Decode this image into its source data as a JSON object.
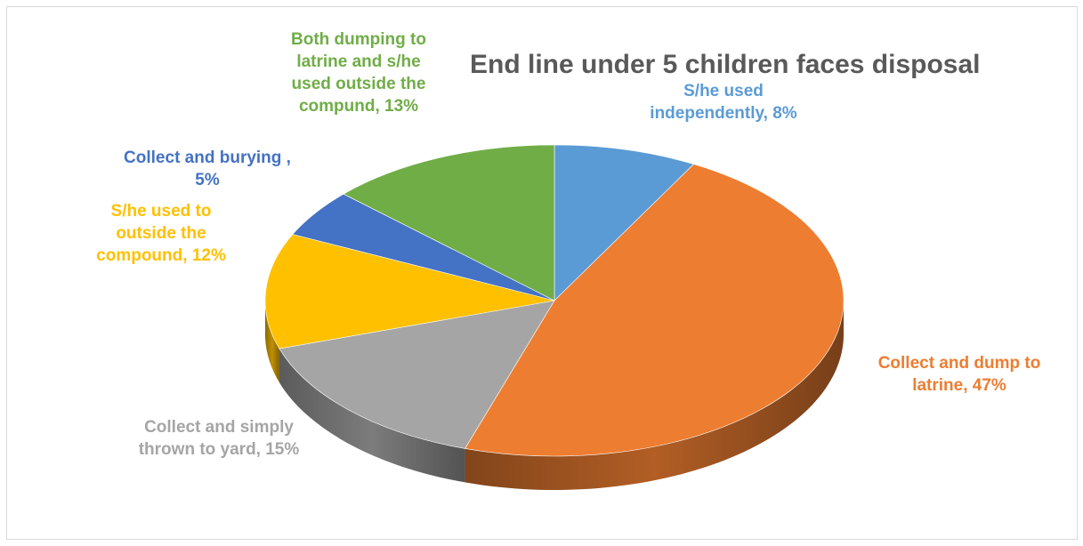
{
  "chart_data": {
    "type": "pie",
    "title": "End line under 5 children faces disposal",
    "slices": [
      {
        "name": "S/he used independently",
        "value": 8,
        "label_lines": [
          "S/he used",
          "independently, 8%"
        ],
        "color": "#5B9BD5"
      },
      {
        "name": "Collect and dump to latrine",
        "value": 47,
        "label_lines": [
          "Collect and dump to",
          "latrine, 47%"
        ],
        "color": "#ED7D31"
      },
      {
        "name": "Collect and simply thrown to yard",
        "value": 15,
        "label_lines": [
          "Collect and simply",
          "thrown to yard, 15%"
        ],
        "color": "#A5A5A5"
      },
      {
        "name": "S/he used to outside the compound",
        "value": 12,
        "label_lines": [
          "S/he used to",
          "outside the",
          "compound, 12%"
        ],
        "color": "#FFC000"
      },
      {
        "name": "Collect and burying",
        "value": 5,
        "label_lines": [
          "Collect and burying ,",
          "5%"
        ],
        "color": "#4472C4"
      },
      {
        "name": "Both dumping to latrine and s/he used outside the compund",
        "value": 13,
        "label_lines": [
          "Both dumping to",
          "latrine and s/he",
          "used outside the",
          "compund, 13%"
        ],
        "color": "#70AD47"
      }
    ],
    "legend": "none",
    "style": "3d-pie"
  }
}
